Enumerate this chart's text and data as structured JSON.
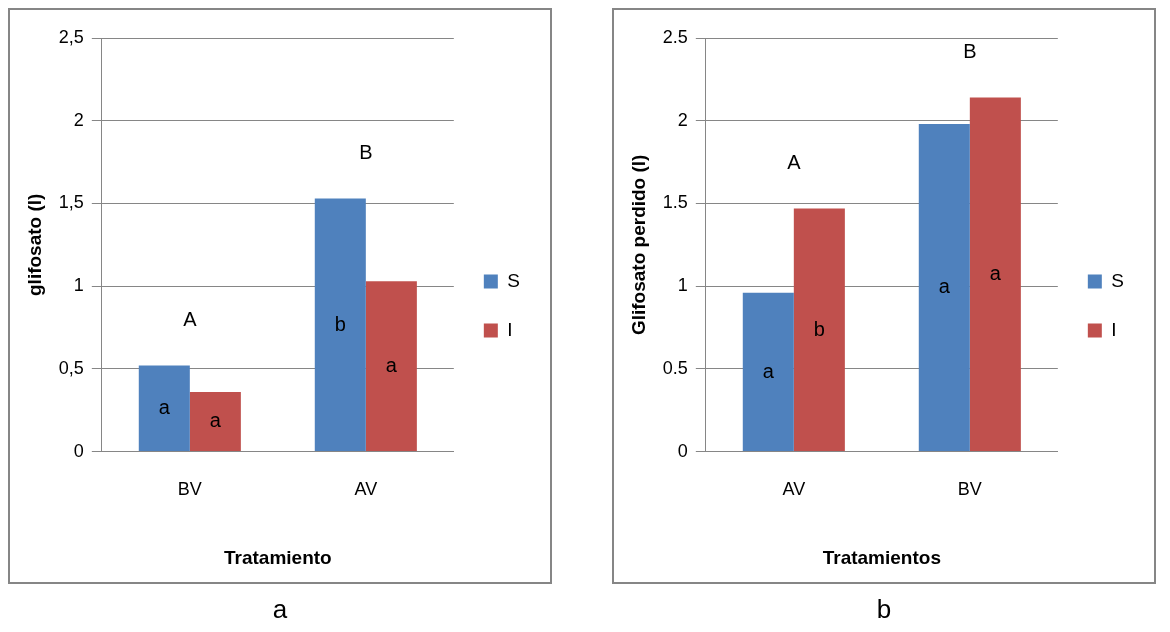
{
  "chart_data": [
    {
      "type": "bar",
      "xlabel": "Tratamiento",
      "ylabel": "glifosato (l)",
      "categories": [
        "BV",
        "AV"
      ],
      "series": [
        {
          "name": "S",
          "color": "#4f81bd",
          "values": [
            0.52,
            1.53
          ],
          "value_labels": [
            "a",
            "b"
          ]
        },
        {
          "name": "I",
          "color": "#c0504d",
          "values": [
            0.36,
            1.03
          ],
          "value_labels": [
            "a",
            "a"
          ]
        }
      ],
      "ylim": [
        0,
        2.5
      ],
      "yticks": [
        0,
        {
          "value": 0.5,
          "label": "0,5"
        },
        1,
        {
          "value": 1.5,
          "label": "1,5"
        },
        2,
        {
          "value": 2.5,
          "label": "2,5"
        }
      ],
      "grid": "y",
      "legend": "right",
      "annotations": [
        "A",
        "B",
        "a"
      ]
    },
    {
      "type": "bar",
      "xlabel": "Tratamientos",
      "ylabel": "Glifosato perdido (l)",
      "categories": [
        "AV",
        "BV"
      ],
      "series": [
        {
          "name": "S",
          "color": "#4f81bd",
          "values": [
            0.96,
            1.98
          ],
          "value_labels": [
            "a",
            "a"
          ]
        },
        {
          "name": "I",
          "color": "#c0504d",
          "values": [
            1.47,
            2.14
          ],
          "value_labels": [
            "b",
            "a"
          ]
        }
      ],
      "ylim": [
        0,
        2.5
      ],
      "yticks": [
        0,
        0.5,
        1,
        1.5,
        2,
        2.5
      ],
      "grid": "y",
      "legend": "right",
      "annotations": [
        "A",
        "B",
        "b"
      ]
    }
  ]
}
